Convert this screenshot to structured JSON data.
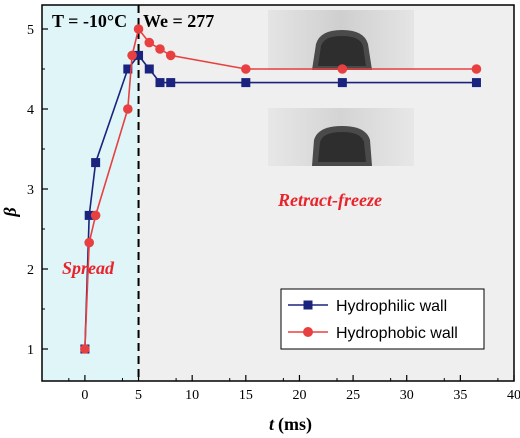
{
  "chart_data": {
    "type": "line",
    "x": [],
    "xlabel": "t",
    "xunit": "(ms)",
    "ylabel": "β",
    "xlim": [
      -4,
      40
    ],
    "ylim": [
      0.6,
      5.3
    ],
    "xticks": [
      "0",
      "5",
      "10",
      "15",
      "20",
      "25",
      "30",
      "35",
      "40"
    ],
    "yticks": [
      "1",
      "2",
      "3",
      "4",
      "5"
    ],
    "xtick_values": [
      0,
      5,
      10,
      15,
      20,
      25,
      30,
      35,
      40
    ],
    "ytick_values": [
      1,
      2,
      3,
      4,
      5
    ],
    "grid": false,
    "legend_position": "bottom-right",
    "divider_x": 5,
    "series": [
      {
        "name": "Hydrophilic wall",
        "color": "#1a237e",
        "marker": "square",
        "x": [
          0,
          0.4,
          1,
          4,
          5,
          6,
          7,
          8,
          15,
          24,
          36.5
        ],
        "y": [
          1,
          2.67,
          3.33,
          4.5,
          4.67,
          4.5,
          4.33,
          4.33,
          4.33,
          4.33,
          4.33
        ]
      },
      {
        "name": "Hydrophobic wall",
        "color": "#e84040",
        "marker": "circle",
        "x": [
          0,
          0.4,
          1,
          4,
          4.4,
          5,
          6,
          7,
          8,
          15,
          24,
          36.5
        ],
        "y": [
          1,
          2.33,
          2.67,
          4.0,
          4.67,
          5.0,
          4.83,
          4.75,
          4.67,
          4.5,
          4.5,
          4.5
        ]
      }
    ],
    "header": {
      "condition_label": "T = -10°C",
      "weber_label": "We = 277"
    },
    "phases": {
      "left": "Spread",
      "right": "Retract-freeze"
    },
    "regions": {
      "left_color": "#dff5f8",
      "right_color": "#efefef"
    }
  }
}
